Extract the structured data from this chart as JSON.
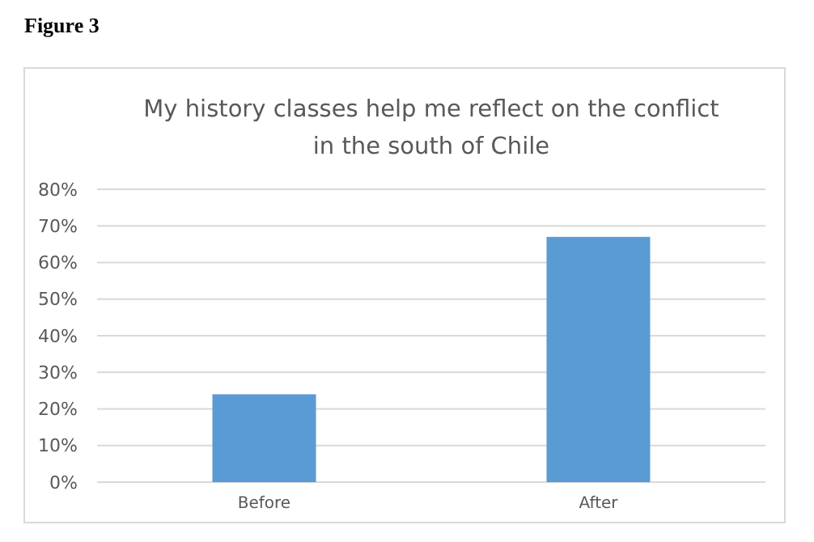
{
  "chart_data": {
    "type": "bar",
    "title": "My history classes help me reflect on the conflict in the south of Chile",
    "annotations": [
      "Figure 3"
    ],
    "categories": [
      "Before",
      "After"
    ],
    "values": [
      24,
      67
    ],
    "color": "#5b9bd5",
    "ylim": [
      0,
      80
    ],
    "yticks": [
      {
        "value": 0,
        "label": "0%"
      },
      {
        "value": 10,
        "label": "10%"
      },
      {
        "value": 20,
        "label": "20%"
      },
      {
        "value": 30,
        "label": "30%"
      },
      {
        "value": 40,
        "label": "40%"
      },
      {
        "value": 50,
        "label": "50%"
      },
      {
        "value": 60,
        "label": "60%"
      },
      {
        "value": 70,
        "label": "70%"
      },
      {
        "value": 80,
        "label": "80%"
      }
    ],
    "grid": "y"
  }
}
